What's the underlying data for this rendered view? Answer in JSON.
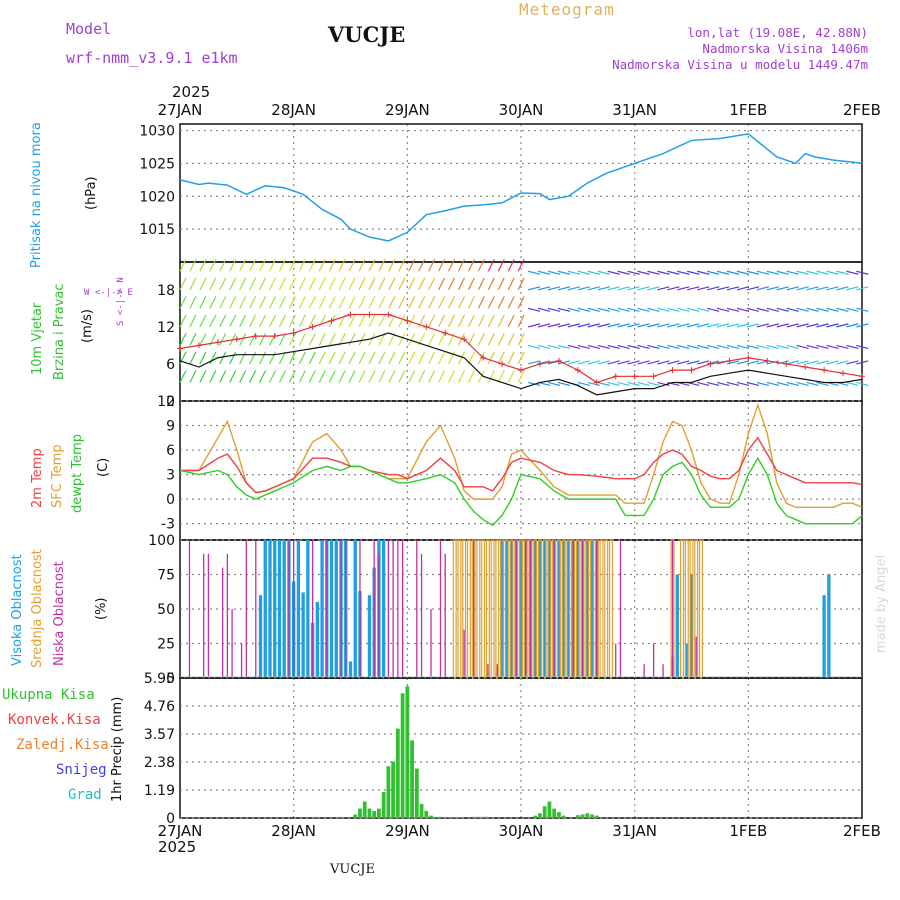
{
  "header": {
    "model_label": "Model",
    "model_name": "wrf-nmm_v3.9.1 e1km",
    "station": "VUCJE",
    "meteogram": "Meteogram",
    "lonlat": "lon,lat (19.08E, 42.88N)",
    "alt": "Nadmorska Visina 1406m",
    "alt_model": "Nadmorska Visina u modelu 1449.47m",
    "year_top": "2025",
    "year_bottom": "2025",
    "footer_station": "VUCJE",
    "credit": "made by Angel"
  },
  "colors": {
    "pressure": "#21a0e8",
    "t2m": "#f04040",
    "sfc": "#e0a030",
    "dewpt": "#30d020",
    "high_cloud": "#20a0e0",
    "mid_cloud": "#e0a030",
    "low_cloud": "#c030a0",
    "precip": "#30c030",
    "grid": "#888888"
  },
  "chart_data": [
    {
      "type": "line",
      "name": "pressure",
      "label": "Pritisak na nivou mora",
      "unit_label": "(hPa)",
      "x_ticks": [
        "27JAN",
        "28JAN",
        "29JAN",
        "30JAN",
        "31JAN",
        "1FEB",
        "2FEB"
      ],
      "yticks": [
        "1015",
        "1020",
        "1025",
        "1030"
      ],
      "ylim": [
        1010,
        1031
      ],
      "x_hours": [
        0,
        4,
        6,
        10,
        14,
        18,
        22,
        26,
        30,
        34,
        36,
        40,
        44,
        48,
        52,
        56,
        60,
        64,
        68,
        72,
        76,
        78,
        82,
        86,
        90,
        96,
        102,
        108,
        114,
        120,
        126,
        130,
        132,
        134,
        138,
        142,
        144
      ],
      "values": [
        1022.5,
        1021.8,
        1022,
        1021.7,
        1020.3,
        1021.6,
        1021.3,
        1020.3,
        1018,
        1016.5,
        1015,
        1013.8,
        1013.2,
        1014.5,
        1017.2,
        1017.8,
        1018.5,
        1018.7,
        1019,
        1020.5,
        1020.4,
        1019.5,
        1020,
        1022,
        1023.5,
        1025,
        1026.5,
        1028.5,
        1028.8,
        1029.5,
        1026,
        1025,
        1026.5,
        1026,
        1025.5,
        1025.2,
        1025
      ]
    },
    {
      "type": "line",
      "name": "wind",
      "label_1": "10m Vjetar",
      "label_2": "Brzina i Pravac",
      "unit_label": "(m/s)",
      "compass": "W <-|-> E",
      "compass_v": "S <-|-> N",
      "yticks": [
        "0",
        "6",
        "12",
        "18"
      ],
      "ylim": [
        0,
        22.5
      ],
      "x_hours": [
        0,
        4,
        8,
        12,
        16,
        20,
        24,
        28,
        32,
        36,
        40,
        44,
        48,
        52,
        56,
        60,
        64,
        68,
        72,
        76,
        80,
        84,
        88,
        92,
        96,
        100,
        104,
        108,
        112,
        116,
        120,
        124,
        128,
        132,
        136,
        140,
        144
      ],
      "speed": [
        6.5,
        5.5,
        7,
        7.5,
        7.5,
        7.5,
        8,
        8.5,
        9,
        9.5,
        10,
        11,
        10,
        9,
        8,
        7,
        4,
        3,
        2,
        3,
        3.5,
        2.5,
        1,
        1.5,
        2,
        2,
        3,
        3,
        4,
        4.5,
        5,
        4.5,
        4,
        3.5,
        3,
        3,
        3.5
      ],
      "gust": [
        8.5,
        9,
        9.5,
        10,
        10.5,
        10.5,
        11,
        12,
        13,
        14,
        14,
        14,
        13,
        12,
        11,
        10,
        7,
        6,
        5,
        6,
        6.5,
        5,
        3,
        4,
        4,
        4,
        5,
        5,
        6,
        6.5,
        7,
        6.5,
        6,
        5.5,
        5,
        4.5,
        4
      ]
    },
    {
      "type": "line",
      "name": "temperature",
      "label_t2m": "2m Temp",
      "label_sfc": "SFC Temp",
      "label_dew": "dewpt Temp",
      "unit_label": "(C)",
      "yticks": [
        "-3",
        "0",
        "3",
        "6",
        "9",
        "12"
      ],
      "ylim": [
        -5,
        12
      ],
      "x_hours": [
        0,
        4,
        8,
        10,
        12,
        14,
        16,
        18,
        20,
        22,
        24,
        28,
        31,
        34,
        36,
        38,
        40,
        44,
        46,
        48,
        52,
        55,
        58,
        60,
        62,
        64,
        66,
        68,
        70,
        72,
        76,
        79,
        82,
        84,
        88,
        92,
        94,
        96,
        98,
        100,
        102,
        104,
        106,
        108,
        110,
        112,
        114,
        116,
        118,
        120,
        122,
        124,
        126,
        128,
        130,
        132,
        134,
        136,
        138,
        140,
        142,
        144
      ],
      "t2m": [
        3.5,
        3.5,
        5,
        5.5,
        4,
        2,
        0.8,
        1,
        1.5,
        2,
        2.5,
        5,
        5,
        4.5,
        4,
        4,
        3.5,
        3,
        3,
        2.5,
        3.5,
        5,
        3.5,
        1.5,
        1.5,
        1.5,
        1,
        2.5,
        4.5,
        5,
        4.5,
        3.5,
        3,
        3,
        2.8,
        2.5,
        2.5,
        2.5,
        3,
        4.5,
        5.5,
        6,
        5.5,
        4,
        3.5,
        2.8,
        2.5,
        2.5,
        3.5,
        6,
        7.5,
        5.5,
        3.5,
        3,
        2.5,
        2,
        2,
        2,
        2,
        2,
        2,
        1.8
      ],
      "sfc": [
        3.5,
        3.5,
        7.5,
        9.5,
        6,
        2,
        0.8,
        1,
        1.5,
        2,
        2.5,
        7,
        8,
        6,
        4,
        4,
        3.5,
        2.5,
        2.5,
        2.5,
        7,
        9,
        5,
        1,
        0,
        0,
        0,
        1.5,
        5.5,
        6,
        3.5,
        1.5,
        0.5,
        0.5,
        0.5,
        0.5,
        -0.5,
        -0.5,
        -0.5,
        3,
        7,
        9.5,
        9,
        6,
        2,
        0,
        -0.5,
        -0.5,
        3,
        8,
        11.5,
        8,
        2,
        -0.5,
        -1,
        -1,
        -1,
        -1,
        -1,
        -0.5,
        -0.5,
        -1
      ],
      "dewpt": [
        3.5,
        3,
        3.5,
        3,
        1.5,
        0.5,
        0,
        0.5,
        1,
        1.5,
        2,
        3.5,
        4,
        3.5,
        4,
        4,
        3.5,
        2.5,
        2,
        2,
        2.5,
        3,
        2,
        0,
        -1.5,
        -2.5,
        -3.2,
        -2,
        0,
        3,
        2.5,
        1,
        0,
        0,
        0,
        0,
        -2,
        -2,
        -2,
        0,
        3,
        4,
        4.5,
        3,
        0.5,
        -1,
        -1,
        -1,
        0,
        3,
        5,
        3,
        -0.5,
        -2,
        -2.5,
        -3,
        -3,
        -3,
        -3,
        -3,
        -3,
        -2
      ]
    },
    {
      "type": "bar",
      "name": "clouds",
      "label_high": "Visoka Oblacnost",
      "label_mid": "Srednja Oblacnost",
      "label_low": "Niska Oblacnost",
      "unit_label": "(%)",
      "yticks": [
        "0",
        "25",
        "50",
        "75",
        "100"
      ],
      "ylim": [
        0,
        100
      ],
      "high_hours": [
        17,
        18,
        19,
        20,
        21,
        22,
        23,
        24,
        25,
        26,
        27,
        28,
        29,
        30,
        31,
        32,
        33,
        34,
        35,
        36,
        37,
        38,
        40,
        41,
        42,
        43,
        68,
        69,
        70,
        71,
        72,
        73,
        74,
        75,
        76,
        77,
        78,
        79,
        80,
        81,
        82,
        83,
        84,
        85,
        86,
        87,
        88,
        104,
        105,
        107,
        108,
        136,
        137
      ],
      "high_values": [
        60,
        100,
        100,
        100,
        100,
        100,
        100,
        70,
        100,
        62,
        100,
        40,
        55,
        100,
        100,
        100,
        100,
        100,
        100,
        12,
        100,
        63,
        60,
        80,
        100,
        100,
        100,
        100,
        100,
        100,
        100,
        100,
        100,
        100,
        100,
        100,
        100,
        100,
        100,
        100,
        100,
        100,
        100,
        100,
        100,
        100,
        100,
        15,
        75,
        25,
        75,
        60,
        75
      ],
      "mid_hours": [
        58,
        59,
        60,
        61,
        62,
        63,
        64,
        65,
        66,
        67,
        68,
        69,
        70,
        71,
        72,
        73,
        74,
        75,
        76,
        77,
        78,
        79,
        80,
        81,
        82,
        83,
        84,
        85,
        86,
        87,
        88,
        89,
        90,
        91,
        104,
        106,
        107,
        108,
        109,
        110
      ],
      "mid_values": [
        100,
        100,
        100,
        100,
        100,
        100,
        100,
        100,
        100,
        100,
        100,
        100,
        100,
        100,
        100,
        100,
        100,
        100,
        100,
        100,
        100,
        100,
        100,
        100,
        100,
        100,
        100,
        100,
        100,
        100,
        100,
        100,
        100,
        100,
        100,
        100,
        100,
        100,
        100,
        100
      ],
      "low_hours": [
        2,
        5,
        6,
        9,
        10,
        11,
        13,
        14,
        16,
        23,
        24,
        28,
        31,
        34,
        35,
        38,
        41,
        42,
        44,
        45,
        46,
        47,
        50,
        51,
        53,
        55,
        56,
        60,
        62,
        65,
        67,
        71,
        73,
        74,
        79,
        83,
        85,
        88,
        92,
        93,
        98,
        100,
        102,
        104,
        109
      ],
      "low_values": [
        100,
        90,
        90,
        80,
        90,
        50,
        25,
        100,
        100,
        100,
        100,
        100,
        100,
        100,
        100,
        100,
        100,
        90,
        100,
        100,
        100,
        100,
        100,
        90,
        50,
        100,
        90,
        35,
        100,
        10,
        10,
        100,
        100,
        100,
        100,
        100,
        100,
        100,
        25,
        100,
        10,
        25,
        10,
        100,
        30
      ]
    },
    {
      "type": "bar",
      "name": "precip",
      "label_total": "Ukupna Kisa",
      "label_conv": "Konvek.Kisa",
      "label_frz": "Zaledj.Kisa",
      "label_snow": "Snijeg",
      "label_hail": "Grad",
      "unit_label": "1hr Precip (mm)",
      "yticks": [
        "0",
        "1.19",
        "2.38",
        "3.57",
        "4.76",
        "5.95"
      ],
      "ylim": [
        0,
        5.95
      ],
      "x_hours": [
        29,
        34,
        37,
        38,
        39,
        40,
        41,
        42,
        43,
        44,
        45,
        46,
        47,
        48,
        49,
        50,
        51,
        52,
        53,
        54,
        55,
        56,
        57,
        58,
        59,
        62,
        63,
        64,
        65,
        75,
        76,
        77,
        78,
        79,
        80,
        81,
        84,
        85,
        86,
        87,
        88
      ],
      "values": [
        0.05,
        0.05,
        0.15,
        0.4,
        0.7,
        0.4,
        0.3,
        0.4,
        1.1,
        2.2,
        2.4,
        3.8,
        5.3,
        5.6,
        3.3,
        2.1,
        0.6,
        0.3,
        0.1,
        0.05,
        0.05,
        0.02,
        0.02,
        0.02,
        0.02,
        0.05,
        0.05,
        0.05,
        0.05,
        0.1,
        0.2,
        0.5,
        0.7,
        0.4,
        0.25,
        0.1,
        0.12,
        0.15,
        0.2,
        0.15,
        0.1
      ]
    }
  ]
}
